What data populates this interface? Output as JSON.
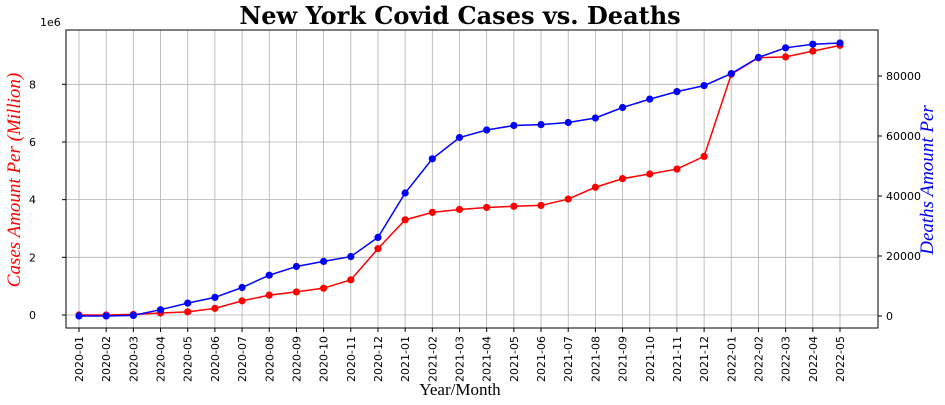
{
  "chart_data": {
    "type": "line",
    "title": "New York Covid Cases vs. Deaths",
    "xlabel": "Year/Month",
    "ylabel_left": "Cases Amount Per (Million)",
    "ylabel_right": "Deaths Amount Per",
    "left_offset_text": "1e6",
    "categories": [
      "2020-01",
      "2020-02",
      "2020-03",
      "2020-04",
      "2020-05",
      "2020-06",
      "2020-07",
      "2020-08",
      "2020-09",
      "2020-10",
      "2020-11",
      "2020-12",
      "2021-01",
      "2021-02",
      "2021-03",
      "2021-04",
      "2021-05",
      "2021-06",
      "2021-07",
      "2021-08",
      "2021-09",
      "2021-10",
      "2021-11",
      "2021-12",
      "2022-01",
      "2022-02",
      "2022-03",
      "2022-04",
      "2022-05"
    ],
    "ylim_left": [
      -450000,
      9800000
    ],
    "yticks_left": [
      0,
      2000000,
      4000000,
      6000000,
      8000000
    ],
    "yticklabels_left": [
      "0",
      "2",
      "4",
      "6",
      "8"
    ],
    "ylim_right": [
      -4500000,
      0
    ],
    "yticks_right": [
      0,
      20000,
      40000,
      60000,
      80000
    ],
    "yticklabels_right": [
      "0",
      "20000",
      "40000",
      "60000",
      "80000"
    ],
    "grid": true,
    "series": [
      {
        "name": "Cases",
        "axis": "left",
        "color": "#ff0000",
        "values": [
          0,
          0,
          20000,
          70000,
          110000,
          230000,
          490000,
          690000,
          800000,
          930000,
          1220000,
          2300000,
          3300000,
          3560000,
          3660000,
          3730000,
          3770000,
          3800000,
          4020000,
          4430000,
          4730000,
          4890000,
          5060000,
          5500000,
          8350000,
          8920000,
          8950000,
          9150000,
          9350000
        ]
      },
      {
        "name": "Deaths",
        "axis": "right",
        "color": "#0000ff",
        "values": [
          0,
          0,
          200,
          2100,
          4300,
          6200,
          9500,
          13600,
          16500,
          18200,
          19800,
          26200,
          41000,
          52400,
          59500,
          62000,
          63500,
          63800,
          64500,
          66000,
          69500,
          72300,
          74800,
          76800,
          80800,
          86200,
          89400,
          90600,
          91000
        ]
      }
    ]
  }
}
